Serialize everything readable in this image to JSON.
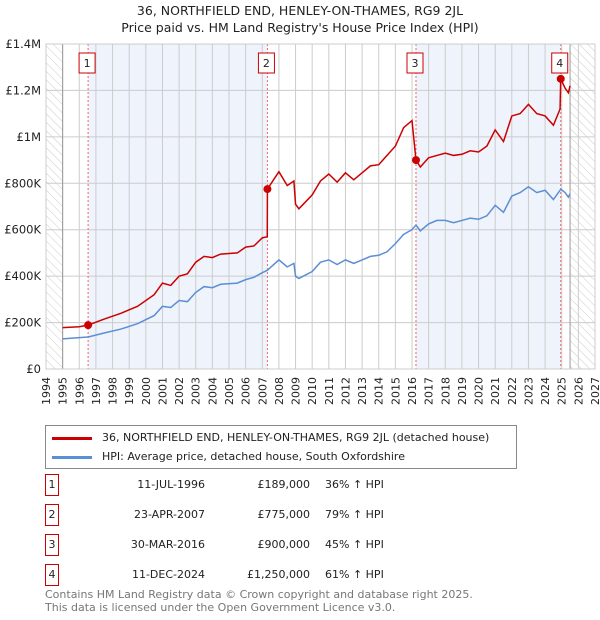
{
  "title_line1": "36, NORTHFIELD END, HENLEY-ON-THAMES, RG9 2JL",
  "title_line2": "Price paid vs. HM Land Registry's House Price Index (HPI)",
  "chart_data": {
    "type": "line",
    "xlim": [
      1994,
      2027
    ],
    "ylim": [
      0,
      1400000
    ],
    "yticks": [
      {
        "v": 0,
        "label": "£0"
      },
      {
        "v": 200000,
        "label": "£200K"
      },
      {
        "v": 400000,
        "label": "£400K"
      },
      {
        "v": 600000,
        "label": "£600K"
      },
      {
        "v": 800000,
        "label": "£800K"
      },
      {
        "v": 1000000,
        "label": "£1M"
      },
      {
        "v": 1200000,
        "label": "£1.2M"
      },
      {
        "v": 1400000,
        "label": "£1.4M"
      }
    ],
    "xticks": [
      "1994",
      "1995",
      "1996",
      "1997",
      "1998",
      "1999",
      "2000",
      "2001",
      "2002",
      "2003",
      "2004",
      "2005",
      "2006",
      "2007",
      "2008",
      "2009",
      "2010",
      "2011",
      "2012",
      "2013",
      "2014",
      "2015",
      "2016",
      "2017",
      "2018",
      "2019",
      "2020",
      "2021",
      "2022",
      "2023",
      "2024",
      "2025",
      "2026",
      "2027"
    ],
    "data_range": [
      1995,
      2025.5
    ],
    "series": [
      {
        "name": "36, NORTHFIELD END, HENLEY-ON-THAMES, RG9 2JL (detached house)",
        "color": "#cc0000",
        "points": [
          [
            1995,
            178
          ],
          [
            1996,
            182
          ],
          [
            1996.53,
            189
          ],
          [
            1997.5,
            215
          ],
          [
            1998.5,
            240
          ],
          [
            1999.5,
            270
          ],
          [
            2000.5,
            320
          ],
          [
            2001,
            370
          ],
          [
            2001.5,
            360
          ],
          [
            2002,
            400
          ],
          [
            2002.5,
            410
          ],
          [
            2003,
            460
          ],
          [
            2003.5,
            485
          ],
          [
            2004,
            480
          ],
          [
            2004.5,
            495
          ],
          [
            2005.5,
            500
          ],
          [
            2006,
            525
          ],
          [
            2006.5,
            530
          ],
          [
            2007,
            565
          ],
          [
            2007.3,
            570
          ],
          [
            2007.31,
            775
          ],
          [
            2008,
            850
          ],
          [
            2008.5,
            790
          ],
          [
            2008.9,
            810
          ],
          [
            2009,
            710
          ],
          [
            2009.2,
            690
          ],
          [
            2010,
            750
          ],
          [
            2010.5,
            810
          ],
          [
            2011,
            840
          ],
          [
            2011.5,
            805
          ],
          [
            2012,
            845
          ],
          [
            2012.5,
            815
          ],
          [
            2013,
            845
          ],
          [
            2013.5,
            875
          ],
          [
            2014,
            880
          ],
          [
            2014.5,
            920
          ],
          [
            2015,
            960
          ],
          [
            2015.5,
            1040
          ],
          [
            2016,
            1070
          ],
          [
            2016.24,
            900
          ],
          [
            2016.5,
            870
          ],
          [
            2017,
            910
          ],
          [
            2017.5,
            920
          ],
          [
            2018,
            930
          ],
          [
            2018.5,
            920
          ],
          [
            2019,
            925
          ],
          [
            2019.5,
            940
          ],
          [
            2020,
            935
          ],
          [
            2020.5,
            960
          ],
          [
            2021,
            1030
          ],
          [
            2021.5,
            980
          ],
          [
            2022,
            1090
          ],
          [
            2022.5,
            1100
          ],
          [
            2023,
            1140
          ],
          [
            2023.5,
            1100
          ],
          [
            2024,
            1090
          ],
          [
            2024.5,
            1050
          ],
          [
            2024.9,
            1120
          ],
          [
            2024.94,
            1250
          ],
          [
            2025.2,
            1210
          ],
          [
            2025.4,
            1190
          ],
          [
            2025.5,
            1220
          ]
        ]
      },
      {
        "name": "HPI: Average price, detached house, South Oxfordshire",
        "color": "#5b8fd4",
        "points": [
          [
            1995,
            130
          ],
          [
            1996,
            135
          ],
          [
            1996.53,
            138
          ],
          [
            1997.5,
            155
          ],
          [
            1998.5,
            172
          ],
          [
            1999.5,
            195
          ],
          [
            2000.5,
            230
          ],
          [
            2001,
            270
          ],
          [
            2001.5,
            265
          ],
          [
            2002,
            295
          ],
          [
            2002.5,
            290
          ],
          [
            2003,
            330
          ],
          [
            2003.5,
            355
          ],
          [
            2004,
            350
          ],
          [
            2004.5,
            365
          ],
          [
            2005.5,
            370
          ],
          [
            2006,
            385
          ],
          [
            2006.5,
            395
          ],
          [
            2007,
            415
          ],
          [
            2007.3,
            425
          ],
          [
            2008,
            470
          ],
          [
            2008.5,
            440
          ],
          [
            2008.9,
            455
          ],
          [
            2009,
            400
          ],
          [
            2009.2,
            390
          ],
          [
            2010,
            420
          ],
          [
            2010.5,
            460
          ],
          [
            2011,
            470
          ],
          [
            2011.5,
            450
          ],
          [
            2012,
            470
          ],
          [
            2012.5,
            455
          ],
          [
            2013,
            470
          ],
          [
            2013.5,
            485
          ],
          [
            2014,
            490
          ],
          [
            2014.5,
            505
          ],
          [
            2015,
            540
          ],
          [
            2015.5,
            580
          ],
          [
            2016,
            600
          ],
          [
            2016.24,
            620
          ],
          [
            2016.5,
            595
          ],
          [
            2017,
            625
          ],
          [
            2017.5,
            640
          ],
          [
            2018,
            640
          ],
          [
            2018.5,
            630
          ],
          [
            2019,
            640
          ],
          [
            2019.5,
            650
          ],
          [
            2020,
            645
          ],
          [
            2020.5,
            660
          ],
          [
            2021,
            705
          ],
          [
            2021.5,
            675
          ],
          [
            2022,
            745
          ],
          [
            2022.5,
            760
          ],
          [
            2023,
            785
          ],
          [
            2023.5,
            760
          ],
          [
            2024,
            770
          ],
          [
            2024.5,
            730
          ],
          [
            2024.9,
            770
          ],
          [
            2024.94,
            775
          ],
          [
            2025.2,
            760
          ],
          [
            2025.4,
            740
          ],
          [
            2025.5,
            755
          ]
        ]
      }
    ],
    "sales": [
      {
        "n": "1",
        "x": 1996.53,
        "y": 189000,
        "date": "11-JUL-1996",
        "price": "£189,000",
        "hpi": "36% ↑ HPI"
      },
      {
        "n": "2",
        "x": 2007.31,
        "y": 775000,
        "date": "23-APR-2007",
        "price": "£775,000",
        "hpi": "79% ↑ HPI"
      },
      {
        "n": "3",
        "x": 2016.24,
        "y": 900000,
        "date": "30-MAR-2016",
        "price": "£900,000",
        "hpi": "45% ↑ HPI"
      },
      {
        "n": "4",
        "x": 2024.94,
        "y": 1250000,
        "date": "11-DEC-2024",
        "price": "£1,250,000",
        "hpi": "61% ↑ HPI"
      }
    ]
  },
  "footer_line1": "Contains HM Land Registry data © Crown copyright and database right 2025.",
  "footer_line2": "This data is licensed under the Open Government Licence v3.0."
}
